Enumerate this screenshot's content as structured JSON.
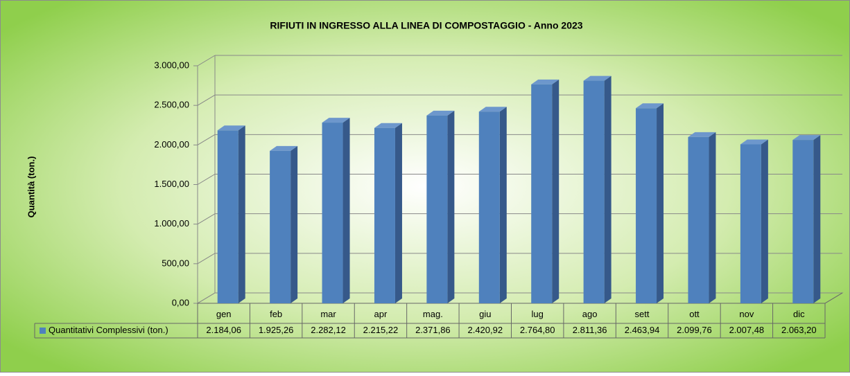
{
  "chart_data": {
    "type": "bar3d",
    "title": "RIFIUTI IN INGRESSO ALLA LINEA DI COMPOSTAGGIO - Anno 2023",
    "y_label": "Quantità (ton.)",
    "categories": [
      "gen",
      "feb",
      "mar",
      "apr",
      "mag.",
      "giu",
      "lug",
      "ago",
      "sett",
      "ott",
      "nov",
      "dic"
    ],
    "series": [
      {
        "name": "Quantitativi Complessivi (ton.)",
        "color": "#4f81bd",
        "values": [
          2184.06,
          1925.26,
          2282.12,
          2215.22,
          2371.86,
          2420.92,
          2764.8,
          2811.36,
          2463.94,
          2099.76,
          2007.48,
          2063.2
        ],
        "value_labels": [
          "2.184,06",
          "1.925,26",
          "2.282,12",
          "2.215,22",
          "2.371,86",
          "2.420,92",
          "2.764,80",
          "2.811,36",
          "2.463,94",
          "2.099,76",
          "2.007,48",
          "2.063,20"
        ]
      }
    ],
    "ylim": [
      0,
      3000
    ],
    "yticks": [
      {
        "value": 0,
        "label": "0,00"
      },
      {
        "value": 500,
        "label": "500,00"
      },
      {
        "value": 1000,
        "label": "1.000,00"
      },
      {
        "value": 1500,
        "label": "1.500,00"
      },
      {
        "value": 2000,
        "label": "2.000,00"
      },
      {
        "value": 2500,
        "label": "2.500,00"
      },
      {
        "value": 3000,
        "label": "3.000,00"
      }
    ],
    "grid": true
  }
}
